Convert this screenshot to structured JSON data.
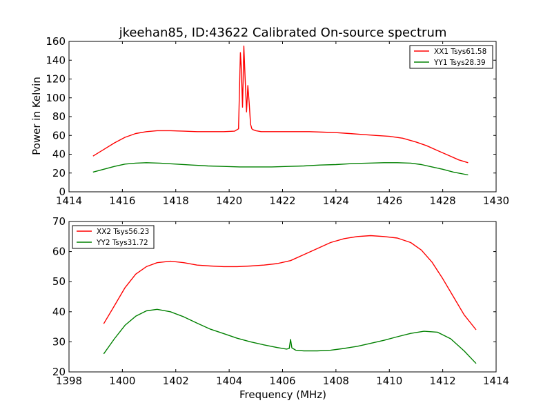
{
  "chart_data": [
    {
      "type": "line",
      "title": "jkeehan85, ID:43622 Calibrated On-source spectrum",
      "xlabel": "",
      "ylabel": "Power in Kelvin",
      "xlim": [
        1414,
        1430
      ],
      "ylim": [
        0,
        160
      ],
      "xticks": [
        1414,
        1416,
        1418,
        1420,
        1422,
        1424,
        1426,
        1428,
        1430
      ],
      "yticks": [
        0,
        20,
        40,
        60,
        80,
        100,
        120,
        140,
        160
      ],
      "legend_position": "top-right",
      "grid": false,
      "series": [
        {
          "name": "XX1 Tsys61.58",
          "color": "#ff0000",
          "x": [
            1414.9,
            1415.3,
            1415.7,
            1416.1,
            1416.5,
            1416.9,
            1417.3,
            1417.8,
            1418.3,
            1418.8,
            1419.3,
            1419.8,
            1420.2,
            1420.35,
            1420.42,
            1420.45,
            1420.5,
            1420.55,
            1420.6,
            1420.65,
            1420.7,
            1420.75,
            1420.8,
            1420.85,
            1420.9,
            1421.0,
            1421.2,
            1421.6,
            1422.0,
            1422.5,
            1423.0,
            1423.5,
            1424.0,
            1424.5,
            1425.0,
            1425.5,
            1426.0,
            1426.5,
            1427.0,
            1427.4,
            1427.8,
            1428.2,
            1428.6,
            1428.95
          ],
          "y": [
            38,
            45,
            52,
            58,
            62,
            64,
            65,
            65,
            64.5,
            64,
            64,
            64,
            64.5,
            67,
            148,
            135,
            90,
            155,
            120,
            85,
            113,
            95,
            72,
            67,
            66,
            65,
            64,
            64,
            64,
            64,
            64,
            63.5,
            63,
            62,
            61,
            60,
            59,
            57,
            53,
            49,
            44,
            39,
            34,
            31
          ]
        },
        {
          "name": "YY1 Tsys28.39",
          "color": "#008000",
          "x": [
            1414.9,
            1415.3,
            1415.7,
            1416.1,
            1416.5,
            1416.9,
            1417.4,
            1418.0,
            1418.6,
            1419.2,
            1419.8,
            1420.4,
            1421.0,
            1421.6,
            1422.2,
            1422.8,
            1423.4,
            1424.0,
            1424.6,
            1425.2,
            1425.8,
            1426.3,
            1426.8,
            1427.2,
            1427.6,
            1428.0,
            1428.4,
            1428.95
          ],
          "y": [
            21,
            24,
            27,
            29.5,
            30.5,
            31,
            30.5,
            29.5,
            28.5,
            27.5,
            27,
            26.5,
            26.5,
            26.5,
            27,
            27.5,
            28.5,
            29,
            30,
            30.5,
            31,
            31,
            30.5,
            29,
            26.5,
            24,
            21,
            18
          ]
        }
      ]
    },
    {
      "type": "line",
      "title": "",
      "xlabel": "Frequency (MHz)",
      "ylabel": "",
      "xlim": [
        1398,
        1414
      ],
      "ylim": [
        20,
        70
      ],
      "xticks": [
        1398,
        1400,
        1402,
        1404,
        1406,
        1408,
        1410,
        1412,
        1414
      ],
      "yticks": [
        20,
        30,
        40,
        50,
        60,
        70
      ],
      "legend_position": "top-left",
      "grid": false,
      "series": [
        {
          "name": "XX2 Tsys56.23",
          "color": "#ff0000",
          "x": [
            1399.3,
            1399.7,
            1400.1,
            1400.5,
            1400.9,
            1401.3,
            1401.8,
            1402.3,
            1402.8,
            1403.3,
            1403.8,
            1404.3,
            1404.8,
            1405.3,
            1405.8,
            1406.3,
            1406.8,
            1407.3,
            1407.8,
            1408.3,
            1408.8,
            1409.3,
            1409.8,
            1410.3,
            1410.8,
            1411.2,
            1411.6,
            1412.0,
            1412.4,
            1412.8,
            1413.25
          ],
          "y": [
            36,
            42,
            48,
            52.5,
            55,
            56.3,
            56.8,
            56.3,
            55.5,
            55.2,
            55,
            55,
            55.2,
            55.5,
            56,
            57,
            59,
            61,
            63,
            64.3,
            65,
            65.3,
            65,
            64.5,
            63,
            60.5,
            56.5,
            51,
            45,
            39,
            34
          ]
        },
        {
          "name": "YY2 Tsys31.72",
          "color": "#008000",
          "x": [
            1399.3,
            1399.7,
            1400.1,
            1400.5,
            1400.9,
            1401.3,
            1401.8,
            1402.3,
            1402.8,
            1403.3,
            1403.8,
            1404.3,
            1404.8,
            1405.3,
            1405.8,
            1406.15,
            1406.25,
            1406.3,
            1406.35,
            1406.5,
            1406.8,
            1407.3,
            1407.8,
            1408.3,
            1408.8,
            1409.3,
            1409.8,
            1410.3,
            1410.8,
            1411.3,
            1411.8,
            1412.3,
            1412.8,
            1413.25
          ],
          "y": [
            26,
            31,
            35.5,
            38.5,
            40.3,
            40.8,
            40,
            38.3,
            36.2,
            34.2,
            32.7,
            31.2,
            30,
            29,
            28.1,
            27.6,
            27.8,
            30.8,
            28,
            27.2,
            27,
            27,
            27.2,
            27.8,
            28.5,
            29.5,
            30.5,
            31.7,
            32.8,
            33.5,
            33.2,
            31,
            27,
            22.8
          ]
        }
      ]
    }
  ]
}
